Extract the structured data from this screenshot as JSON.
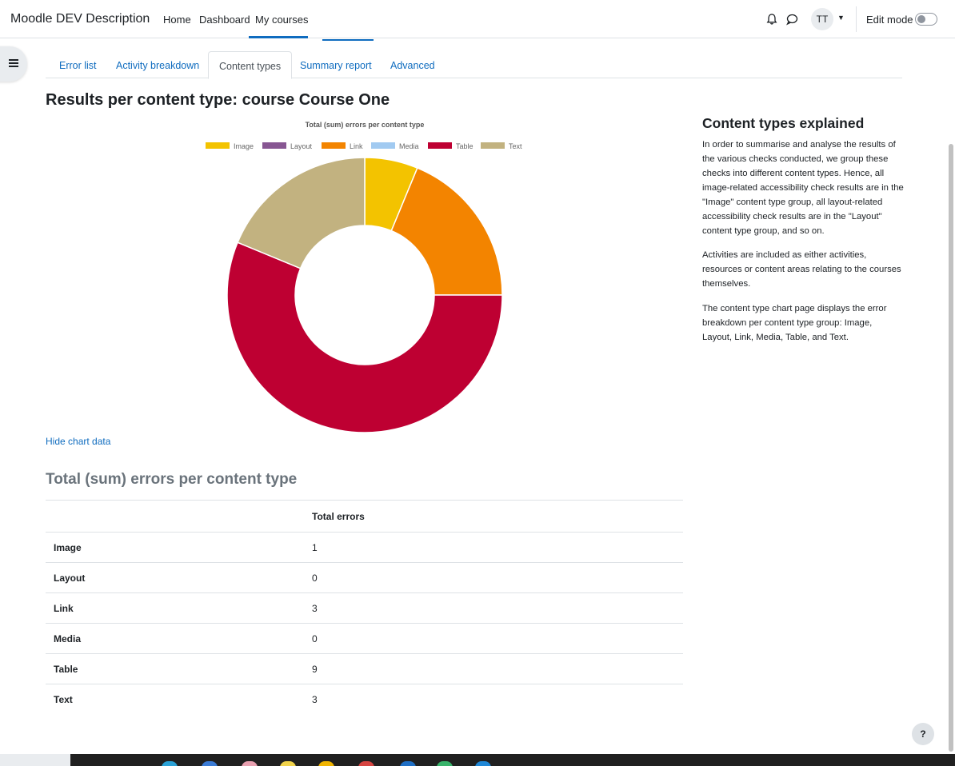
{
  "navbar": {
    "brand": "Moodle DEV Description",
    "links": [
      "Home",
      "Dashboard",
      "My courses"
    ],
    "avatar_initials": "TT",
    "edit_mode_label": "Edit mode",
    "icons": [
      "bell-icon",
      "chat-icon",
      "chevron-down-icon"
    ]
  },
  "tabs": [
    "Error list",
    "Activity breakdown",
    "Content types",
    "Summary report",
    "Advanced"
  ],
  "active_tab": "Content types",
  "page_title": "Results per content type: course Course One",
  "chart_data": {
    "type": "pie",
    "variant": "doughnut",
    "title": "Total (sum) errors per content type",
    "legend_position": "top",
    "categories": [
      "Image",
      "Layout",
      "Link",
      "Media",
      "Table",
      "Text"
    ],
    "values": [
      1,
      0,
      3,
      0,
      9,
      3
    ],
    "colors": [
      "#f3c300",
      "#875692",
      "#f38400",
      "#a1caf1",
      "#be0032",
      "#c2b280"
    ]
  },
  "hide_chart_link": "Hide chart data",
  "table": {
    "heading": "Total (sum) errors per content type",
    "column_header": "Total errors",
    "rows": [
      {
        "label": "Image",
        "value": "1"
      },
      {
        "label": "Layout",
        "value": "0"
      },
      {
        "label": "Link",
        "value": "3"
      },
      {
        "label": "Media",
        "value": "0"
      },
      {
        "label": "Table",
        "value": "9"
      },
      {
        "label": "Text",
        "value": "3"
      }
    ]
  },
  "explain": {
    "title": "Content types explained",
    "paragraphs": [
      "In order to summarise and analyse the results of the various checks conducted, we group these checks into different content types. Hence, all image-related accessibility check results are in the \"Image\" content type group, all layout-related accessibility check results are in the \"Layout\" content type group, and so on.",
      "Activities are included as either activities, resources or content areas relating to the courses themselves.",
      "The content type chart page displays the error breakdown per content type group: Image, Layout, Link, Media, Table, and Text."
    ]
  },
  "help_button": "?",
  "accent_color": "#0f6cbf"
}
